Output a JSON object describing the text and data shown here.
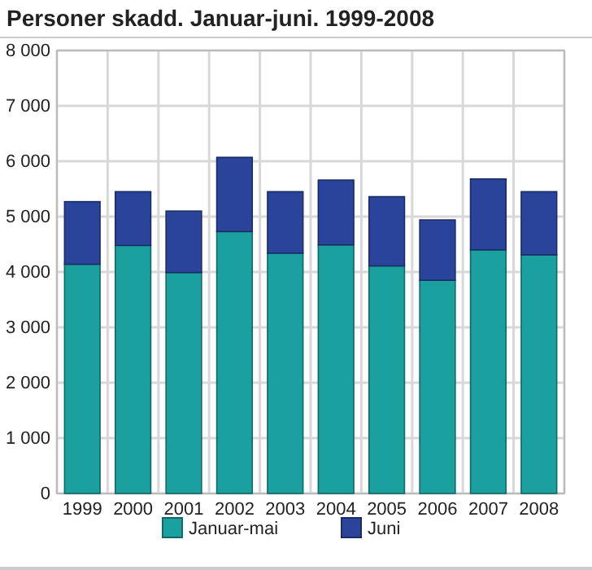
{
  "chart_data": {
    "type": "bar",
    "title": "Personer skadd. Januar-juni. 1999-2008",
    "categories": [
      "1999",
      "2000",
      "2001",
      "2002",
      "2003",
      "2004",
      "2005",
      "2006",
      "2007",
      "2008"
    ],
    "stacked": true,
    "series": [
      {
        "name": "Januar-mai",
        "color": "#1aa09e",
        "values": [
          4140,
          4480,
          3990,
          4730,
          4340,
          4490,
          4110,
          3850,
          4400,
          4310
        ]
      },
      {
        "name": "Juni",
        "color": "#2a449b",
        "values": [
          1130,
          970,
          1110,
          1340,
          1110,
          1170,
          1250,
          1090,
          1280,
          1140
        ]
      }
    ],
    "ylim": [
      0,
      8000
    ],
    "yticks": [
      {
        "value": 0,
        "label": "0"
      },
      {
        "value": 1000,
        "label": "1 000"
      },
      {
        "value": 2000,
        "label": "2 000"
      },
      {
        "value": 3000,
        "label": "3 000"
      },
      {
        "value": 4000,
        "label": "4 000"
      },
      {
        "value": 5000,
        "label": "5 000"
      },
      {
        "value": 6000,
        "label": "6 000"
      },
      {
        "value": 7000,
        "label": "7 000"
      },
      {
        "value": 8000,
        "label": "8 000"
      }
    ],
    "grid": true,
    "legend": "bottom"
  }
}
